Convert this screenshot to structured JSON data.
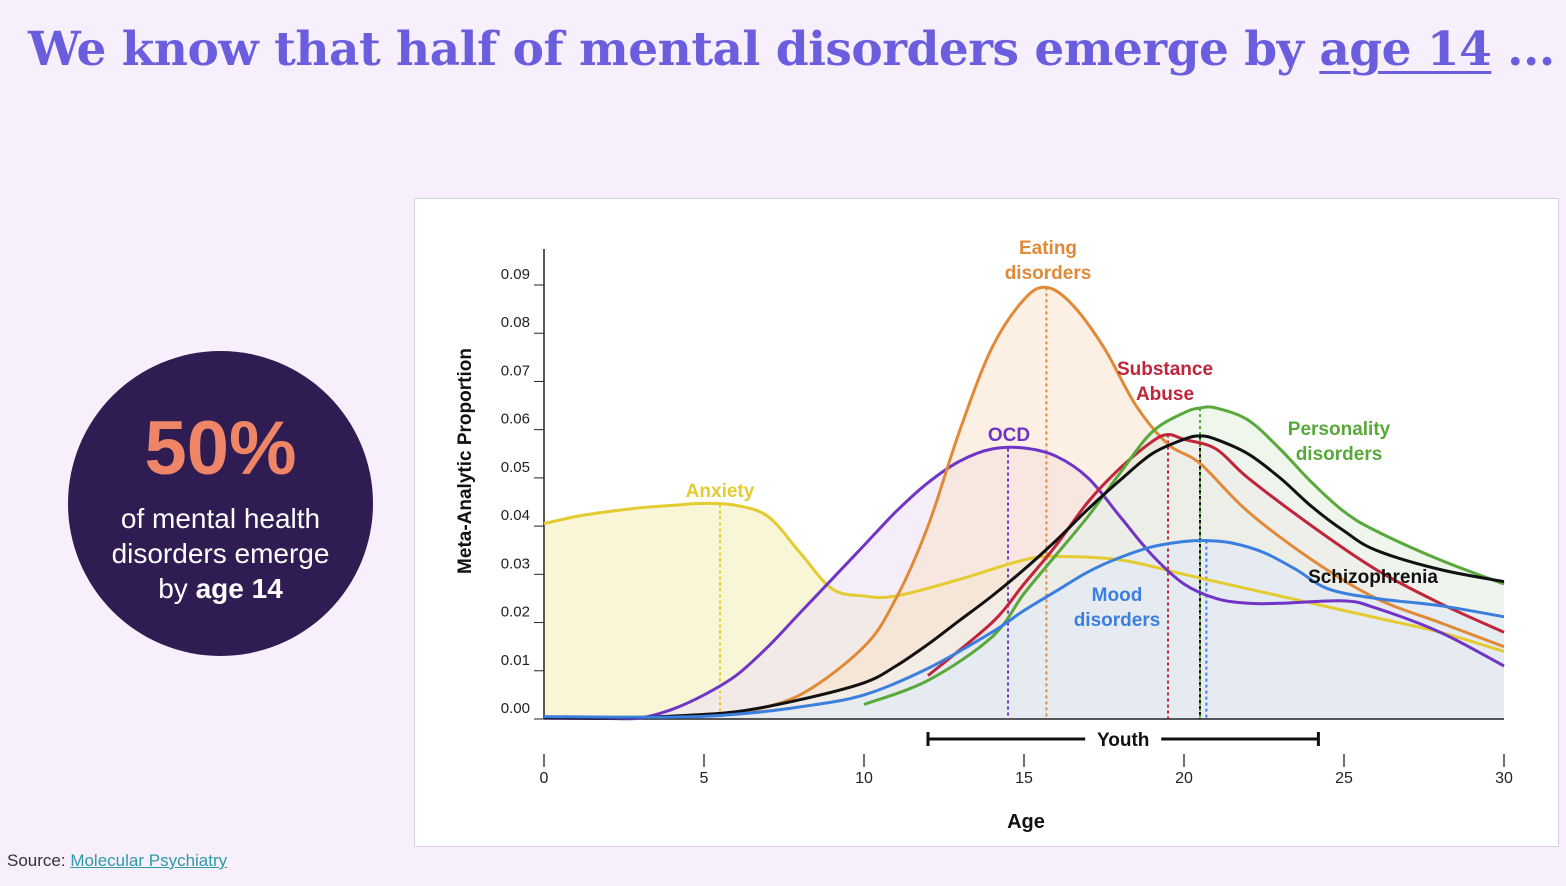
{
  "headline": {
    "text_before": "We know that half of mental disorders emerge by ",
    "emphasis": "age 14",
    "text_after": " ..."
  },
  "stat": {
    "value": "50%",
    "caption_line1": "of mental health",
    "caption_line2": "disorders emerge",
    "caption_line3_prefix": "by ",
    "caption_line3_bold": "age 14"
  },
  "source": {
    "label": "Source: ",
    "link_text": "Molecular Psychiatry"
  },
  "chart_data": {
    "type": "line",
    "xlabel": "Age",
    "ylabel": "Meta-Analytic Proportion",
    "xlim": [
      0,
      30
    ],
    "ylim": [
      0,
      0.09
    ],
    "x_ticks": [
      0,
      5,
      10,
      15,
      20,
      25,
      30
    ],
    "y_ticks": [
      "0.00",
      "0.01",
      "0.02",
      "0.03",
      "0.04",
      "0.05",
      "0.06",
      "0.07",
      "0.08",
      "0.09"
    ],
    "youth_range": {
      "label": "Youth",
      "start": 12,
      "end": 24.2
    },
    "series": [
      {
        "name": "Anxiety",
        "color": "#e3cb30",
        "fill": "#f3eeb4",
        "peak_age": 5.5,
        "points": [
          [
            0,
            0.0405
          ],
          [
            1,
            0.042
          ],
          [
            2,
            0.043
          ],
          [
            3,
            0.0438
          ],
          [
            4,
            0.0443
          ],
          [
            5,
            0.0447
          ],
          [
            6,
            0.0443
          ],
          [
            7,
            0.042
          ],
          [
            8,
            0.0345
          ],
          [
            9,
            0.027
          ],
          [
            10,
            0.0255
          ],
          [
            11,
            0.0255
          ],
          [
            13,
            0.029
          ],
          [
            15,
            0.033
          ],
          [
            16,
            0.0337
          ],
          [
            18,
            0.033
          ],
          [
            20,
            0.03
          ],
          [
            22,
            0.027
          ],
          [
            24,
            0.024
          ],
          [
            26,
            0.021
          ],
          [
            28,
            0.018
          ],
          [
            30,
            0.014
          ]
        ]
      },
      {
        "name": "OCD",
        "color": "#7035c6",
        "fill": "#ece0f5",
        "peak_age": 14.5,
        "points": [
          [
            0,
            0.0002
          ],
          [
            2,
            0.0001
          ],
          [
            3,
            0.0002
          ],
          [
            4,
            0.002
          ],
          [
            5,
            0.005
          ],
          [
            6,
            0.009
          ],
          [
            7,
            0.015
          ],
          [
            8,
            0.022
          ],
          [
            9,
            0.029
          ],
          [
            10,
            0.036
          ],
          [
            11,
            0.043
          ],
          [
            12,
            0.049
          ],
          [
            13,
            0.0535
          ],
          [
            14,
            0.056
          ],
          [
            15,
            0.0562
          ],
          [
            16,
            0.0545
          ],
          [
            17,
            0.05
          ],
          [
            18,
            0.042
          ],
          [
            19,
            0.034
          ],
          [
            20,
            0.028
          ],
          [
            21,
            0.025
          ],
          [
            22,
            0.024
          ],
          [
            23,
            0.024
          ],
          [
            25,
            0.0245
          ],
          [
            26,
            0.023
          ],
          [
            28,
            0.018
          ],
          [
            30,
            0.011
          ]
        ]
      },
      {
        "name": "Eating disorders",
        "color": "#e08a38",
        "fill": "#f9e2cc",
        "peak_age": 15.7,
        "points": [
          [
            6,
            0.001
          ],
          [
            8,
            0.005
          ],
          [
            10,
            0.015
          ],
          [
            11,
            0.025
          ],
          [
            12,
            0.04
          ],
          [
            13,
            0.06
          ],
          [
            14,
            0.077
          ],
          [
            15,
            0.087
          ],
          [
            15.7,
            0.0895
          ],
          [
            16.5,
            0.086
          ],
          [
            17.5,
            0.077
          ],
          [
            18.5,
            0.065
          ],
          [
            19.5,
            0.057
          ],
          [
            20.5,
            0.053
          ],
          [
            22,
            0.043
          ],
          [
            24,
            0.033
          ],
          [
            26,
            0.025
          ],
          [
            28,
            0.02
          ],
          [
            30,
            0.015
          ]
        ]
      },
      {
        "name": "Substance Abuse",
        "color": "#c0253a",
        "fill": "#f7dde0",
        "peak_age": 19.5,
        "points": [
          [
            12,
            0.009
          ],
          [
            14,
            0.02
          ],
          [
            15,
            0.028
          ],
          [
            16,
            0.036
          ],
          [
            17,
            0.045
          ],
          [
            18,
            0.052
          ],
          [
            19,
            0.0575
          ],
          [
            19.5,
            0.059
          ],
          [
            20,
            0.058
          ],
          [
            21,
            0.056
          ],
          [
            22,
            0.05
          ],
          [
            24,
            0.04
          ],
          [
            26,
            0.031
          ],
          [
            28,
            0.024
          ],
          [
            30,
            0.018
          ]
        ]
      },
      {
        "name": "Personality disorders",
        "color": "#58a83a",
        "fill": "#e2f0dc",
        "peak_age": 20.5,
        "points": [
          [
            10,
            0.003
          ],
          [
            12,
            0.008
          ],
          [
            14,
            0.017
          ],
          [
            15,
            0.026
          ],
          [
            16,
            0.034
          ],
          [
            17,
            0.042
          ],
          [
            18,
            0.051
          ],
          [
            19,
            0.0595
          ],
          [
            20,
            0.0635
          ],
          [
            20.5,
            0.0645
          ],
          [
            21,
            0.0645
          ],
          [
            22,
            0.062
          ],
          [
            23,
            0.056
          ],
          [
            24,
            0.049
          ],
          [
            25,
            0.043
          ],
          [
            26,
            0.039
          ],
          [
            28,
            0.033
          ],
          [
            30,
            0.028
          ]
        ]
      },
      {
        "name": "Schizophrenia",
        "color": "#111111",
        "fill": "#eef0f0",
        "peak_age": 20.5,
        "points": [
          [
            0,
            0.0003
          ],
          [
            2,
            0.0002
          ],
          [
            4,
            0.0006
          ],
          [
            6,
            0.0015
          ],
          [
            8,
            0.004
          ],
          [
            10,
            0.0075
          ],
          [
            11,
            0.011
          ],
          [
            12,
            0.0155
          ],
          [
            13,
            0.0205
          ],
          [
            14,
            0.0255
          ],
          [
            15,
            0.031
          ],
          [
            16,
            0.037
          ],
          [
            17,
            0.0435
          ],
          [
            18,
            0.0495
          ],
          [
            19,
            0.055
          ],
          [
            20,
            0.058
          ],
          [
            20.5,
            0.0587
          ],
          [
            21,
            0.058
          ],
          [
            22,
            0.055
          ],
          [
            23,
            0.05
          ],
          [
            24,
            0.044
          ],
          [
            25,
            0.039
          ],
          [
            26,
            0.035
          ],
          [
            28,
            0.031
          ],
          [
            30,
            0.0285
          ]
        ]
      },
      {
        "name": "Mood disorders",
        "color": "#3b7fde",
        "fill": "#dfeaf8",
        "peak_age": 20.7,
        "points": [
          [
            0,
            0.0005
          ],
          [
            4,
            0.0004
          ],
          [
            6,
            0.001
          ],
          [
            8,
            0.0025
          ],
          [
            10,
            0.005
          ],
          [
            12,
            0.0105
          ],
          [
            14,
            0.018
          ],
          [
            15,
            0.0225
          ],
          [
            16,
            0.0265
          ],
          [
            17,
            0.0305
          ],
          [
            18,
            0.0335
          ],
          [
            19,
            0.0357
          ],
          [
            20,
            0.0368
          ],
          [
            20.7,
            0.037
          ],
          [
            21.5,
            0.0365
          ],
          [
            22.5,
            0.0345
          ],
          [
            23.5,
            0.031
          ],
          [
            24.5,
            0.027
          ],
          [
            26,
            0.025
          ],
          [
            28,
            0.0235
          ],
          [
            30,
            0.0212
          ]
        ]
      }
    ]
  }
}
